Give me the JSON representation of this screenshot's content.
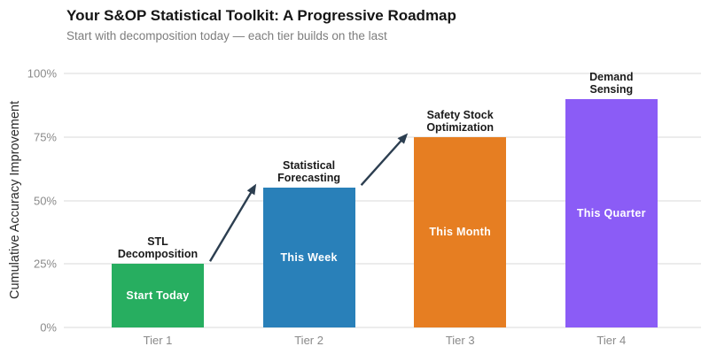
{
  "chart_data": {
    "type": "bar",
    "title": "Your S&OP Statistical Toolkit: A Progressive Roadmap",
    "subtitle": "Start with decomposition today — each tier builds on the last",
    "ylabel": "Cumulative Accuracy Improvement",
    "xlabel": "",
    "ylim": [
      0,
      100
    ],
    "yticks": [
      0,
      25,
      50,
      75,
      100
    ],
    "ytick_labels": [
      "0%",
      "25%",
      "50%",
      "75%",
      "100%"
    ],
    "grid": true,
    "legend": "none",
    "categories": [
      "Tier 1",
      "Tier 2",
      "Tier 3",
      "Tier 4"
    ],
    "values": [
      25,
      55,
      75,
      90
    ],
    "series": [
      {
        "name": "Cumulative Accuracy Improvement",
        "values": [
          25,
          55,
          75,
          90
        ]
      }
    ],
    "bar_colors": [
      "#27ae60",
      "#2980b9",
      "#e67e22",
      "#8b5cf6"
    ],
    "bar_inner_labels": [
      "Start Today",
      "This Week",
      "This Month",
      "This Quarter"
    ],
    "bar_annotations": [
      [
        "STL",
        "Decomposition"
      ],
      [
        "Statistical",
        "Forecasting"
      ],
      [
        "Safety Stock",
        "Optimization"
      ],
      [
        "Demand",
        "Sensing"
      ]
    ],
    "arrows": [
      {
        "from_bar": 0,
        "to_bar": 1
      },
      {
        "from_bar": 1,
        "to_bar": 2
      }
    ],
    "colors": {
      "arrow": "#2c3e50",
      "annotation_text": "#1a1a1a",
      "inner_label_text": "#ffffff",
      "grid_line": "#ececec",
      "tick_label": "#8a8a8a",
      "title": "#151515",
      "subtitle": "#7d7d7d",
      "background": "#ffffff"
    }
  }
}
